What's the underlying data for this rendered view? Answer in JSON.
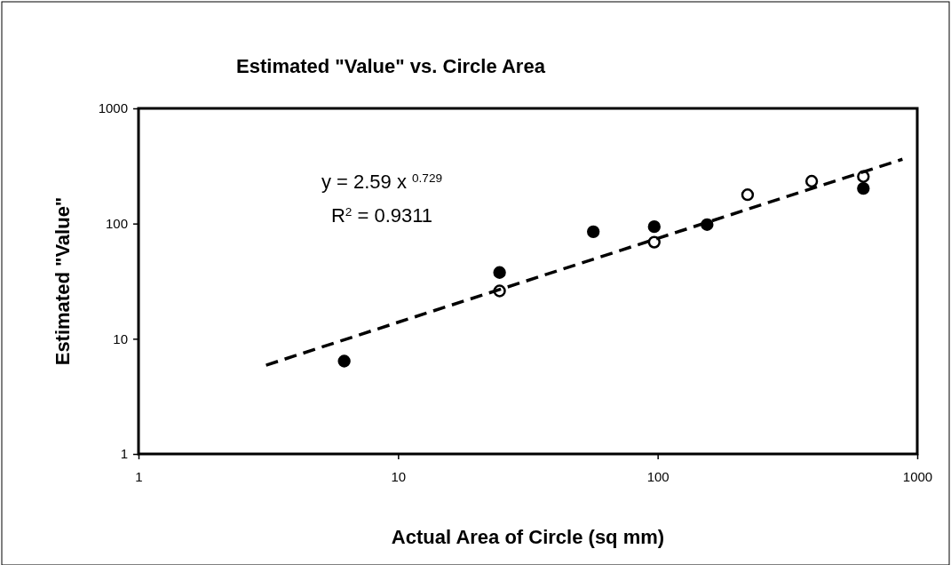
{
  "chart_data": {
    "type": "scatter",
    "title": "Estimated \"Value\" vs. Circle Area",
    "xlabel": "Actual Area of Circle (sq mm)",
    "ylabel": "Estimated \"Value\"",
    "log": "xy",
    "xlim": [
      1,
      1000
    ],
    "ylim": [
      1,
      1000
    ],
    "xticks": [
      1,
      10,
      100,
      1000
    ],
    "yticks": [
      1,
      10,
      100,
      1000
    ],
    "grid": false,
    "marker": "circle",
    "annotations": [
      "y = 2.59 x $^{0.729}$",
      "R$^{2}$ = 0.9311"
    ],
    "series": [
      {
        "color": "#000000",
        "x": [
          6.2,
          24.6,
          56.5,
          97,
          155,
          620
        ],
        "values": [
          6.4,
          37.6,
          85,
          94,
          98,
          202
        ]
      },
      {
        "color": "#ffffff",
        "x": [
          24.6,
          97,
          222,
          392,
          620
        ],
        "values": [
          26,
          69,
          178,
          233,
          256
        ]
      },
      {
        "type": "line",
        "color": "#000000",
        "line_style": "dashed",
        "marker": "none",
        "x": [
          3.1,
          10,
          30,
          100,
          300,
          877
        ],
        "values": [
          5.9,
          13.9,
          30.9,
          74.4,
          165.7,
          362
        ]
      }
    ]
  }
}
